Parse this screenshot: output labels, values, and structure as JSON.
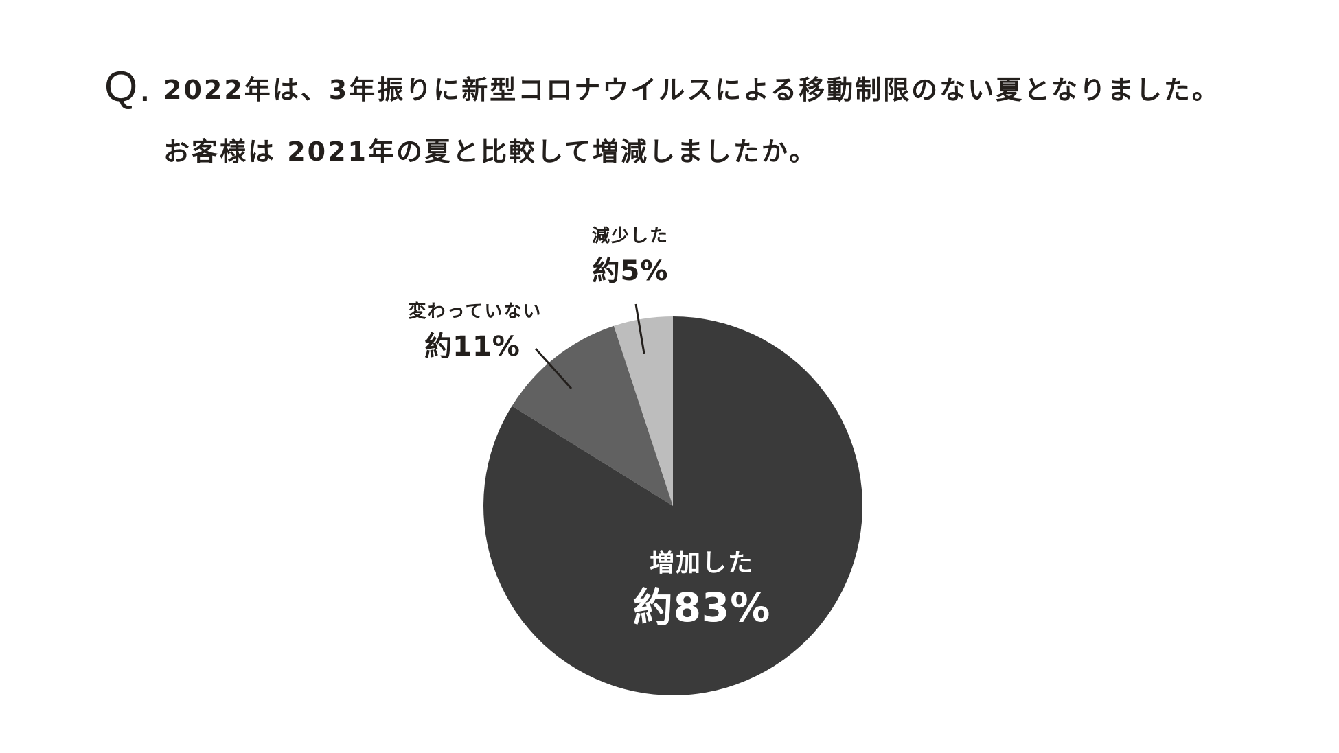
{
  "question": {
    "mark": "Q.",
    "line1": "2022年は、3年振りに新型コロナウイルスによる移動制限のない夏となりました。",
    "line2": "お客様は 2021年の夏と比較して増減しましたか。"
  },
  "chart_data": {
    "type": "pie",
    "title": "",
    "start_angle_deg": 0,
    "direction": "clockwise",
    "slices": [
      {
        "label": "増加した",
        "value": 83,
        "value_text": "約83%",
        "color": "#3a3a3a",
        "label_color": "#ffffff",
        "label_position": "inside"
      },
      {
        "label": "変わっていない",
        "value": 11,
        "value_text": "約11%",
        "color": "#616161",
        "label_color": "#231f1c",
        "label_position": "outside-leader"
      },
      {
        "label": "減少した",
        "value": 5,
        "value_text": "約5%",
        "color": "#bdbdbd",
        "label_color": "#231f1c",
        "label_position": "outside-leader"
      }
    ],
    "legend": "none"
  }
}
